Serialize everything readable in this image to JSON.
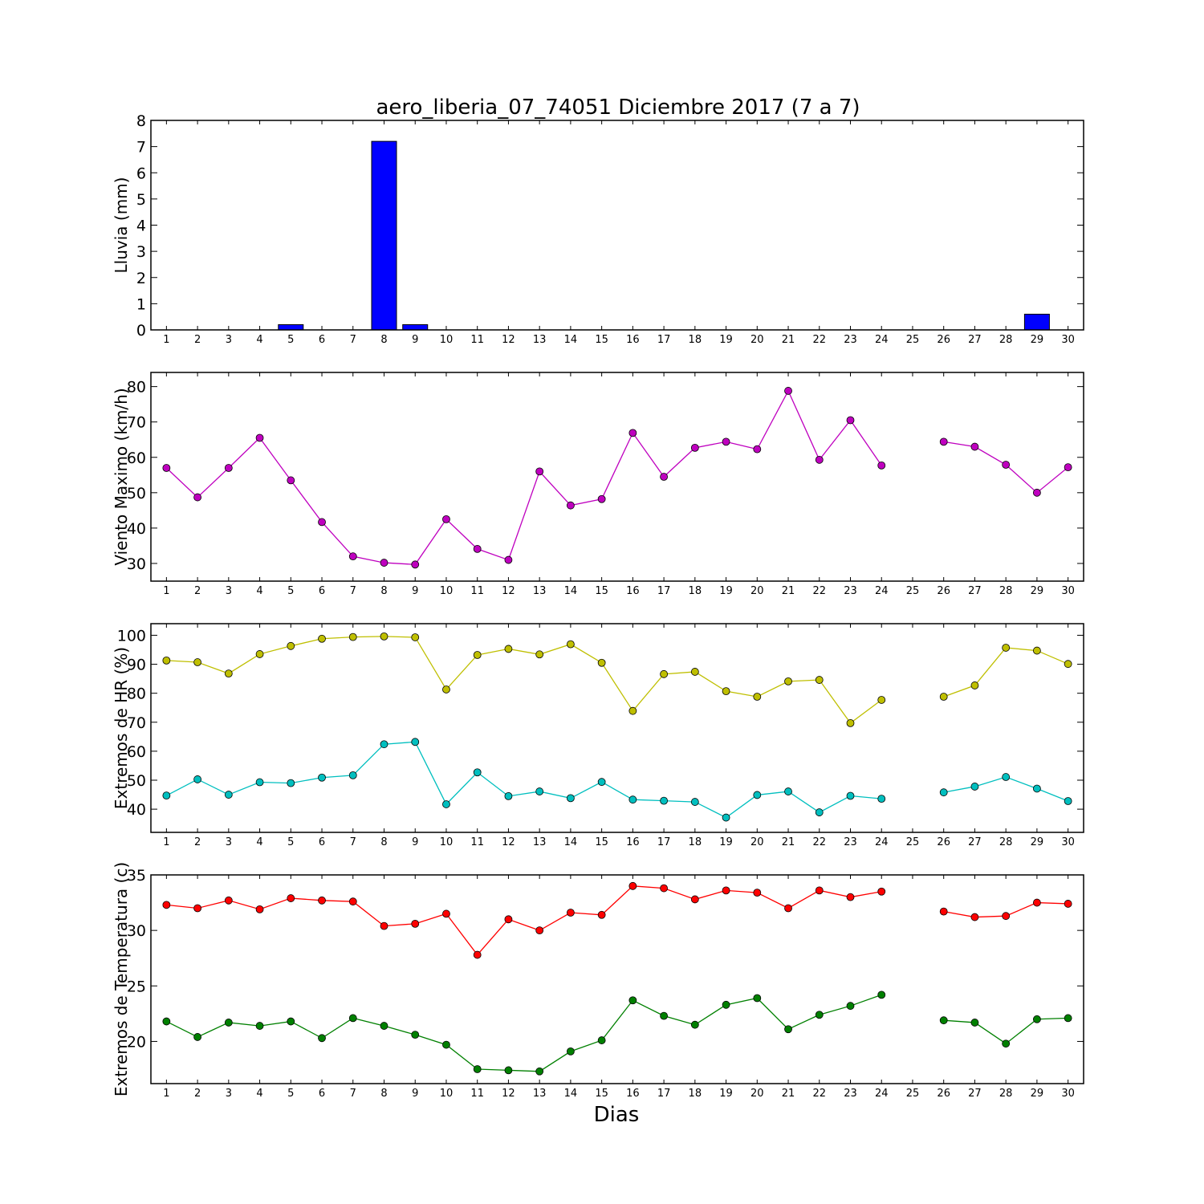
{
  "title": "aero_liberia_07_74051 Diciembre 2017  (7 a 7)",
  "xlabel": "Dias",
  "chart_data": [
    {
      "type": "bar",
      "ylabel": "Lluvia (mm)",
      "ylim": [
        0,
        8
      ],
      "yticks": [
        0,
        1,
        2,
        3,
        4,
        5,
        6,
        7,
        8
      ],
      "xticks": [
        1,
        2,
        3,
        4,
        5,
        6,
        7,
        8,
        9,
        10,
        11,
        12,
        13,
        14,
        15,
        16,
        17,
        18,
        19,
        20,
        21,
        22,
        23,
        24,
        25,
        26,
        27,
        28,
        29,
        30
      ],
      "x": [
        1,
        2,
        3,
        4,
        5,
        6,
        7,
        8,
        9,
        10,
        11,
        12,
        13,
        14,
        15,
        16,
        17,
        18,
        19,
        20,
        21,
        22,
        23,
        24,
        25,
        26,
        27,
        28,
        29,
        30
      ],
      "series": [
        {
          "color": "#0000ff",
          "values": [
            0,
            0,
            0,
            0,
            0.2,
            0,
            0,
            7.2,
            0.2,
            0,
            0,
            0,
            0,
            0,
            0,
            0,
            0,
            0,
            0,
            0,
            0,
            0,
            0,
            0,
            0,
            0,
            0,
            0,
            0.6,
            0
          ]
        }
      ]
    },
    {
      "type": "line",
      "ylabel": "Viento Maximo (km/h)",
      "ylim": [
        25,
        84
      ],
      "yticks": [
        30,
        40,
        50,
        60,
        70,
        80
      ],
      "xticks": [
        1,
        2,
        3,
        4,
        5,
        6,
        7,
        8,
        9,
        10,
        11,
        12,
        13,
        14,
        15,
        16,
        17,
        18,
        19,
        20,
        21,
        22,
        23,
        24,
        25,
        26,
        27,
        28,
        29,
        30
      ],
      "x": [
        1,
        2,
        3,
        4,
        5,
        6,
        7,
        8,
        9,
        10,
        11,
        12,
        13,
        14,
        15,
        16,
        17,
        18,
        19,
        20,
        21,
        22,
        23,
        24,
        25,
        26,
        27,
        28,
        29,
        30
      ],
      "series": [
        {
          "color": "#bf00bf",
          "values": [
            57.0,
            48.7,
            57.0,
            65.5,
            53.5,
            41.7,
            32.0,
            30.2,
            29.7,
            42.5,
            34.1,
            31.0,
            56.0,
            46.4,
            48.2,
            66.9,
            54.5,
            62.7,
            64.4,
            62.3,
            78.8,
            59.3,
            70.5,
            57.7,
            null,
            64.4,
            63.0,
            57.9,
            50.0,
            57.2
          ]
        }
      ]
    },
    {
      "type": "line",
      "ylabel": "Extremos de HR (%)",
      "ylim": [
        32,
        104
      ],
      "yticks": [
        40,
        50,
        60,
        70,
        80,
        90,
        100
      ],
      "xticks": [
        1,
        2,
        3,
        4,
        5,
        6,
        7,
        8,
        9,
        10,
        11,
        12,
        13,
        14,
        15,
        16,
        17,
        18,
        19,
        20,
        21,
        22,
        23,
        24,
        25,
        26,
        27,
        28,
        29,
        30
      ],
      "x": [
        1,
        2,
        3,
        4,
        5,
        6,
        7,
        8,
        9,
        10,
        11,
        12,
        13,
        14,
        15,
        16,
        17,
        18,
        19,
        20,
        21,
        22,
        23,
        24,
        25,
        26,
        27,
        28,
        29,
        30
      ],
      "series": [
        {
          "color": "#bfbf00",
          "values": [
            91.3,
            90.7,
            86.8,
            93.5,
            96.3,
            98.8,
            99.4,
            99.6,
            99.3,
            81.3,
            93.2,
            95.3,
            93.4,
            96.9,
            90.5,
            73.9,
            86.6,
            87.4,
            80.7,
            78.8,
            84.1,
            84.6,
            69.7,
            77.7,
            null,
            78.8,
            82.7,
            95.7,
            94.7,
            90.1
          ]
        },
        {
          "color": "#00bfbf",
          "values": [
            44.7,
            50.3,
            45.0,
            49.3,
            49.0,
            50.9,
            51.7,
            62.4,
            63.2,
            41.7,
            52.7,
            44.5,
            46.1,
            43.8,
            49.4,
            43.3,
            42.9,
            42.5,
            37.1,
            44.9,
            46.1,
            38.9,
            44.6,
            43.6,
            null,
            45.8,
            47.8,
            51.1,
            47.1,
            42.8
          ]
        }
      ]
    },
    {
      "type": "line",
      "ylabel": "Extremos de Temperatura (c)",
      "ylim": [
        16.2,
        35
      ],
      "yticks": [
        20,
        25,
        30,
        35
      ],
      "xticks": [
        1,
        2,
        3,
        4,
        5,
        6,
        7,
        8,
        9,
        10,
        11,
        12,
        13,
        14,
        15,
        16,
        17,
        18,
        19,
        20,
        21,
        22,
        23,
        24,
        25,
        26,
        27,
        28,
        29,
        30
      ],
      "x": [
        1,
        2,
        3,
        4,
        5,
        6,
        7,
        8,
        9,
        10,
        11,
        12,
        13,
        14,
        15,
        16,
        17,
        18,
        19,
        20,
        21,
        22,
        23,
        24,
        25,
        26,
        27,
        28,
        29,
        30
      ],
      "series": [
        {
          "color": "#ff0000",
          "values": [
            32.3,
            32.0,
            32.7,
            31.9,
            32.9,
            32.7,
            32.6,
            30.4,
            30.6,
            31.5,
            27.8,
            31.0,
            30.0,
            31.6,
            31.4,
            34.0,
            33.8,
            32.8,
            33.6,
            33.4,
            32.0,
            33.6,
            33.0,
            33.5,
            null,
            31.7,
            31.2,
            31.3,
            32.5,
            32.4
          ]
        },
        {
          "color": "#008000",
          "values": [
            21.8,
            20.4,
            21.7,
            21.4,
            21.8,
            20.3,
            22.1,
            21.4,
            20.6,
            19.7,
            17.5,
            17.4,
            17.3,
            19.1,
            20.1,
            23.7,
            22.3,
            21.5,
            23.3,
            23.9,
            21.1,
            22.4,
            23.2,
            24.2,
            null,
            21.9,
            21.7,
            19.8,
            22.0,
            22.1
          ]
        }
      ]
    }
  ]
}
